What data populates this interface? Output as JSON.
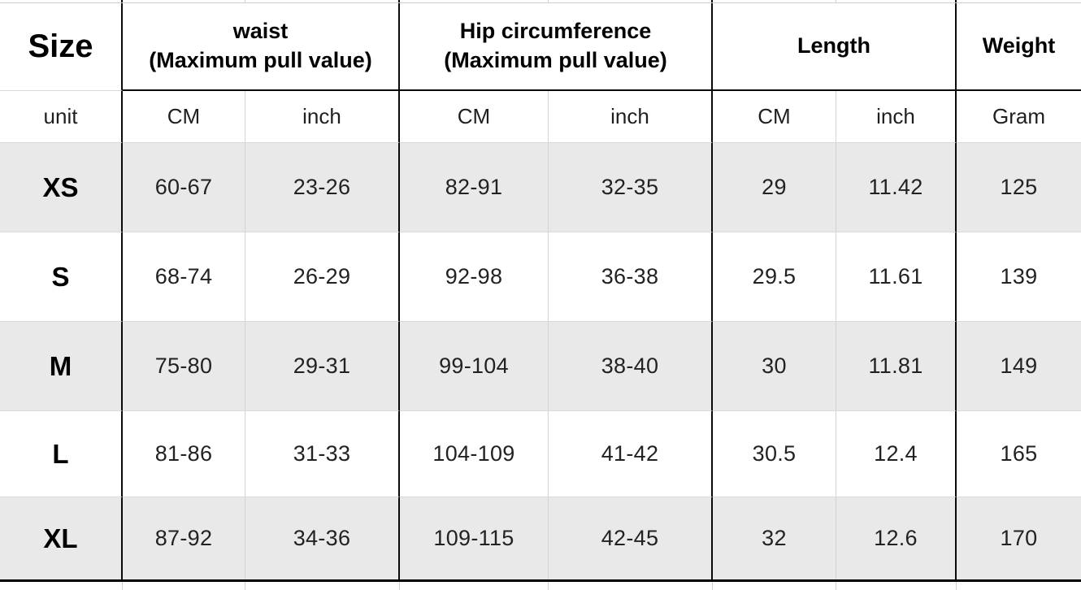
{
  "colors": {
    "row_alt_background": "#e9e9e9",
    "grid_thick": "#0a0a0a",
    "grid_thin": "#d4d4d4",
    "text": "#1a1a1a"
  },
  "table": {
    "corner_label": "Size",
    "unit_label": "unit",
    "groups": [
      {
        "label": "waist",
        "sublabel": "(Maximum pull value)",
        "units": [
          "CM",
          "inch"
        ]
      },
      {
        "label": "Hip circumference",
        "sublabel": "(Maximum pull value)",
        "units": [
          "CM",
          "inch"
        ]
      },
      {
        "label": "Length",
        "sublabel": "",
        "units": [
          "CM",
          "inch"
        ]
      },
      {
        "label": "Weight",
        "sublabel": "",
        "units": [
          "Gram"
        ]
      }
    ],
    "unit_cells": [
      "CM",
      "inch",
      "CM",
      "inch",
      "CM",
      "inch",
      "Gram"
    ],
    "rows": [
      {
        "size": "XS",
        "values": [
          "60-67",
          "23-26",
          "82-91",
          "32-35",
          "29",
          "11.42",
          "125"
        ]
      },
      {
        "size": "S",
        "values": [
          "68-74",
          "26-29",
          "92-98",
          "36-38",
          "29.5",
          "11.61",
          "139"
        ]
      },
      {
        "size": "M",
        "values": [
          "75-80",
          "29-31",
          "99-104",
          "38-40",
          "30",
          "11.81",
          "149"
        ]
      },
      {
        "size": "L",
        "values": [
          "81-86",
          "31-33",
          "104-109",
          "41-42",
          "30.5",
          "12.4",
          "165"
        ]
      },
      {
        "size": "XL",
        "values": [
          "87-92",
          "34-36",
          "109-115",
          "42-45",
          "32",
          "12.6",
          "170"
        ]
      }
    ]
  },
  "chart_data": {
    "type": "table",
    "columns": [
      "Size",
      "waist (Maximum pull value) - CM",
      "waist (Maximum pull value) - inch",
      "Hip circumference (Maximum pull value) - CM",
      "Hip circumference (Maximum pull value) - inch",
      "Length - CM",
      "Length - inch",
      "Weight - Gram"
    ],
    "rows": [
      [
        "XS",
        "60-67",
        "23-26",
        "82-91",
        "32-35",
        "29",
        "11.42",
        "125"
      ],
      [
        "S",
        "68-74",
        "26-29",
        "92-98",
        "36-38",
        "29.5",
        "11.61",
        "139"
      ],
      [
        "M",
        "75-80",
        "29-31",
        "99-104",
        "38-40",
        "30",
        "11.81",
        "149"
      ],
      [
        "L",
        "81-86",
        "31-33",
        "104-109",
        "41-42",
        "30.5",
        "12.4",
        "165"
      ],
      [
        "XL",
        "87-92",
        "34-36",
        "109-115",
        "42-45",
        "32",
        "12.6",
        "170"
      ]
    ]
  }
}
